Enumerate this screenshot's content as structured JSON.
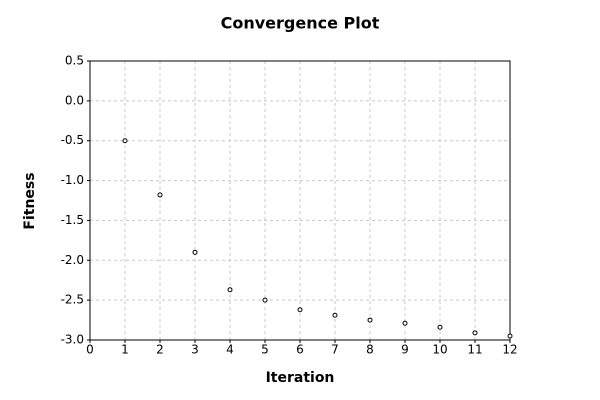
{
  "chart_data": {
    "type": "scatter",
    "title": "Convergence Plot",
    "x_label": "Iteration",
    "y_label": "Fitness",
    "x": [
      1,
      2,
      3,
      4,
      5,
      6,
      7,
      8,
      9,
      10,
      11,
      12
    ],
    "values": [
      -0.5,
      -1.18,
      -1.9,
      -2.37,
      -2.5,
      -2.62,
      -2.69,
      -2.75,
      -2.79,
      -2.84,
      -2.91,
      -2.95
    ],
    "color": "#000000",
    "xlim": [
      0,
      12
    ],
    "xticks": [
      0,
      1,
      2,
      3,
      4,
      5,
      6,
      7,
      8,
      9,
      10,
      11,
      12
    ],
    "ylim": [
      -3,
      0.5
    ],
    "yticks": [
      {
        "value": 0.5,
        "label": "0.5"
      },
      {
        "value": 0,
        "label": "0.0"
      },
      {
        "value": -0.5,
        "label": "-0.5"
      },
      {
        "value": -1,
        "label": "-1.0"
      },
      {
        "value": -1.5,
        "label": "-1.5"
      },
      {
        "value": -2,
        "label": "-2.0"
      },
      {
        "value": -2.5,
        "label": "-2.5"
      },
      {
        "value": -3,
        "label": "-3.0"
      }
    ],
    "grid": true
  }
}
